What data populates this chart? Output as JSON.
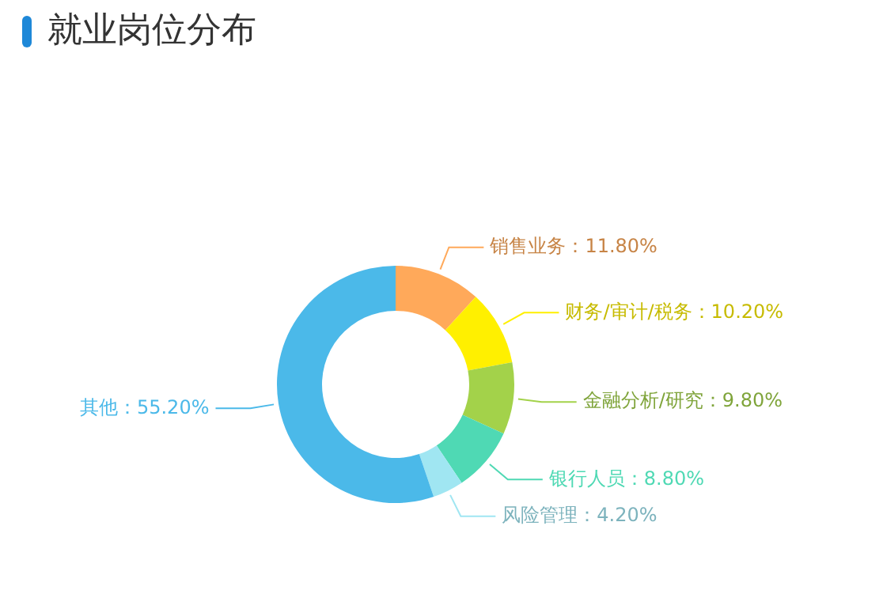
{
  "chart_data": {
    "type": "donut",
    "title": "就业岗位分布",
    "categories": [
      "销售业务",
      "财务/审计/税务",
      "金融分析/研究",
      "银行人员",
      "风险管理",
      "其他"
    ],
    "values": [
      11.8,
      10.2,
      9.8,
      8.8,
      4.2,
      55.2
    ],
    "value_labels": [
      "11.80%",
      "10.20%",
      "9.80%",
      "8.80%",
      "4.20%",
      "55.20%"
    ],
    "colors": [
      "#ffa95a",
      "#fff000",
      "#a3d24a",
      "#4fd9b4",
      "#a0e6f2",
      "#4bb9e9"
    ],
    "legend": false
  }
}
